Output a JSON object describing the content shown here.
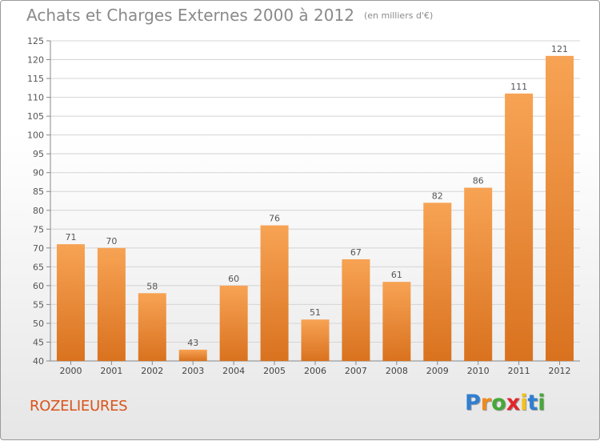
{
  "chart_data": {
    "type": "bar",
    "title": "Achats et Charges Externes 2000 à 2012",
    "subtitle": "(en milliers d'€)",
    "categories": [
      "2000",
      "2001",
      "2002",
      "2003",
      "2004",
      "2005",
      "2006",
      "2007",
      "2008",
      "2009",
      "2010",
      "2011",
      "2012"
    ],
    "values": [
      71,
      70,
      58,
      43,
      60,
      76,
      51,
      67,
      61,
      82,
      86,
      111,
      121
    ],
    "ylim": [
      40,
      125
    ],
    "yticks": [
      40,
      45,
      50,
      55,
      60,
      65,
      70,
      75,
      80,
      85,
      90,
      95,
      100,
      105,
      110,
      115,
      120,
      125
    ],
    "grid": true,
    "bar_color": "#f0892e",
    "xlabel": "",
    "ylabel": ""
  },
  "commune": "ROZELIEURES",
  "logo": {
    "letters": [
      "P",
      "r",
      "o",
      "x",
      "i",
      "t",
      "i"
    ],
    "colors": [
      "#2f7fd1",
      "#f08a1c",
      "#46a838",
      "#e3262d",
      "#f6c21c",
      "#2f7fd1",
      "#46a838"
    ]
  }
}
